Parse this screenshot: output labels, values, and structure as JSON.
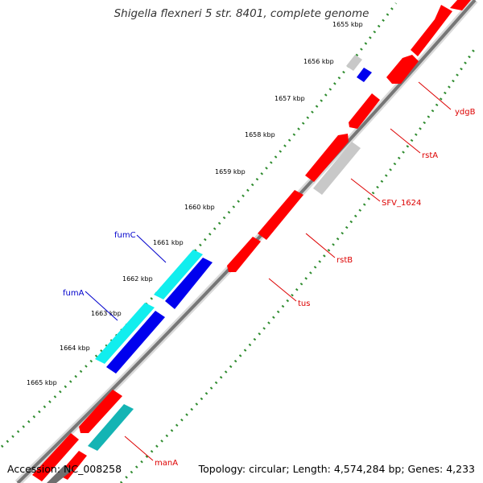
{
  "title": "Shigella flexneri 5 str. 8401, complete genome",
  "footer": {
    "accession": "Accession: NC_008258",
    "summary": "Topology: circular; Length: 4,574,284 bp; Genes: 4,233"
  },
  "colors": {
    "forward_gene": "#ff0000",
    "reverse_gene": "#ff0000",
    "blue_gene": "#0000ee",
    "cyan_gene": "#11eeee",
    "teal_gene": "#14b4b4",
    "grey_gene": "#c8c8c8",
    "dark_grey_gene": "#6e6e6e",
    "backbone": "#888888",
    "tick": "#2e8b2e",
    "label_red": "#dd0000",
    "label_blue": "#0000cc"
  },
  "ticks": [
    "1655 kbp",
    "1656 kbp",
    "1657 kbp",
    "1658 kbp",
    "1659 kbp",
    "1660 kbp",
    "1661 kbp",
    "1662 kbp",
    "1663 kbp",
    "1664 kbp",
    "1665 kbp"
  ],
  "gene_labels_right": [
    "ydgB",
    "rstA",
    "SFV_1624",
    "rstB",
    "tus",
    "manA"
  ],
  "gene_labels_left": [
    "fumC",
    "fumA"
  ]
}
